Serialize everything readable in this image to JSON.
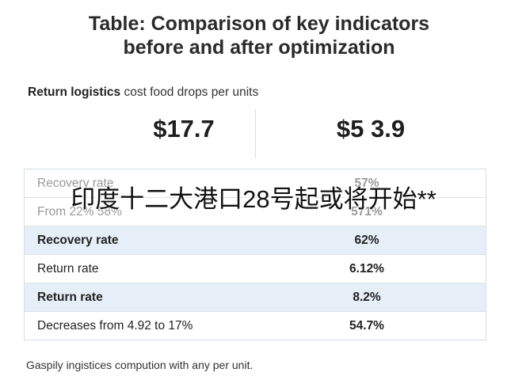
{
  "header": {
    "title_lines": [
      "Table: Comparison of key indicators",
      "before and after optimization"
    ]
  },
  "subtitle": {
    "bold": "Return logistics",
    "rest": "cost food drops per units"
  },
  "summary": {
    "values": [
      "$17.7",
      "$5 3.9"
    ]
  },
  "table": {
    "rows": [
      [
        "Recovery rate",
        "57%"
      ],
      [
        "From 22% 58%",
        "571%"
      ],
      [
        "Recovery rate",
        "62%"
      ],
      [
        "Return rate",
        "6.12%"
      ],
      [
        "Return rate",
        "8.2%"
      ],
      [
        "Decreases from 4.92 to 17%",
        "54.7%"
      ]
    ]
  },
  "overlay": "印度十二大港口28号起或将开始**",
  "footer": "Gaspily ingistices compution with any per unit."
}
